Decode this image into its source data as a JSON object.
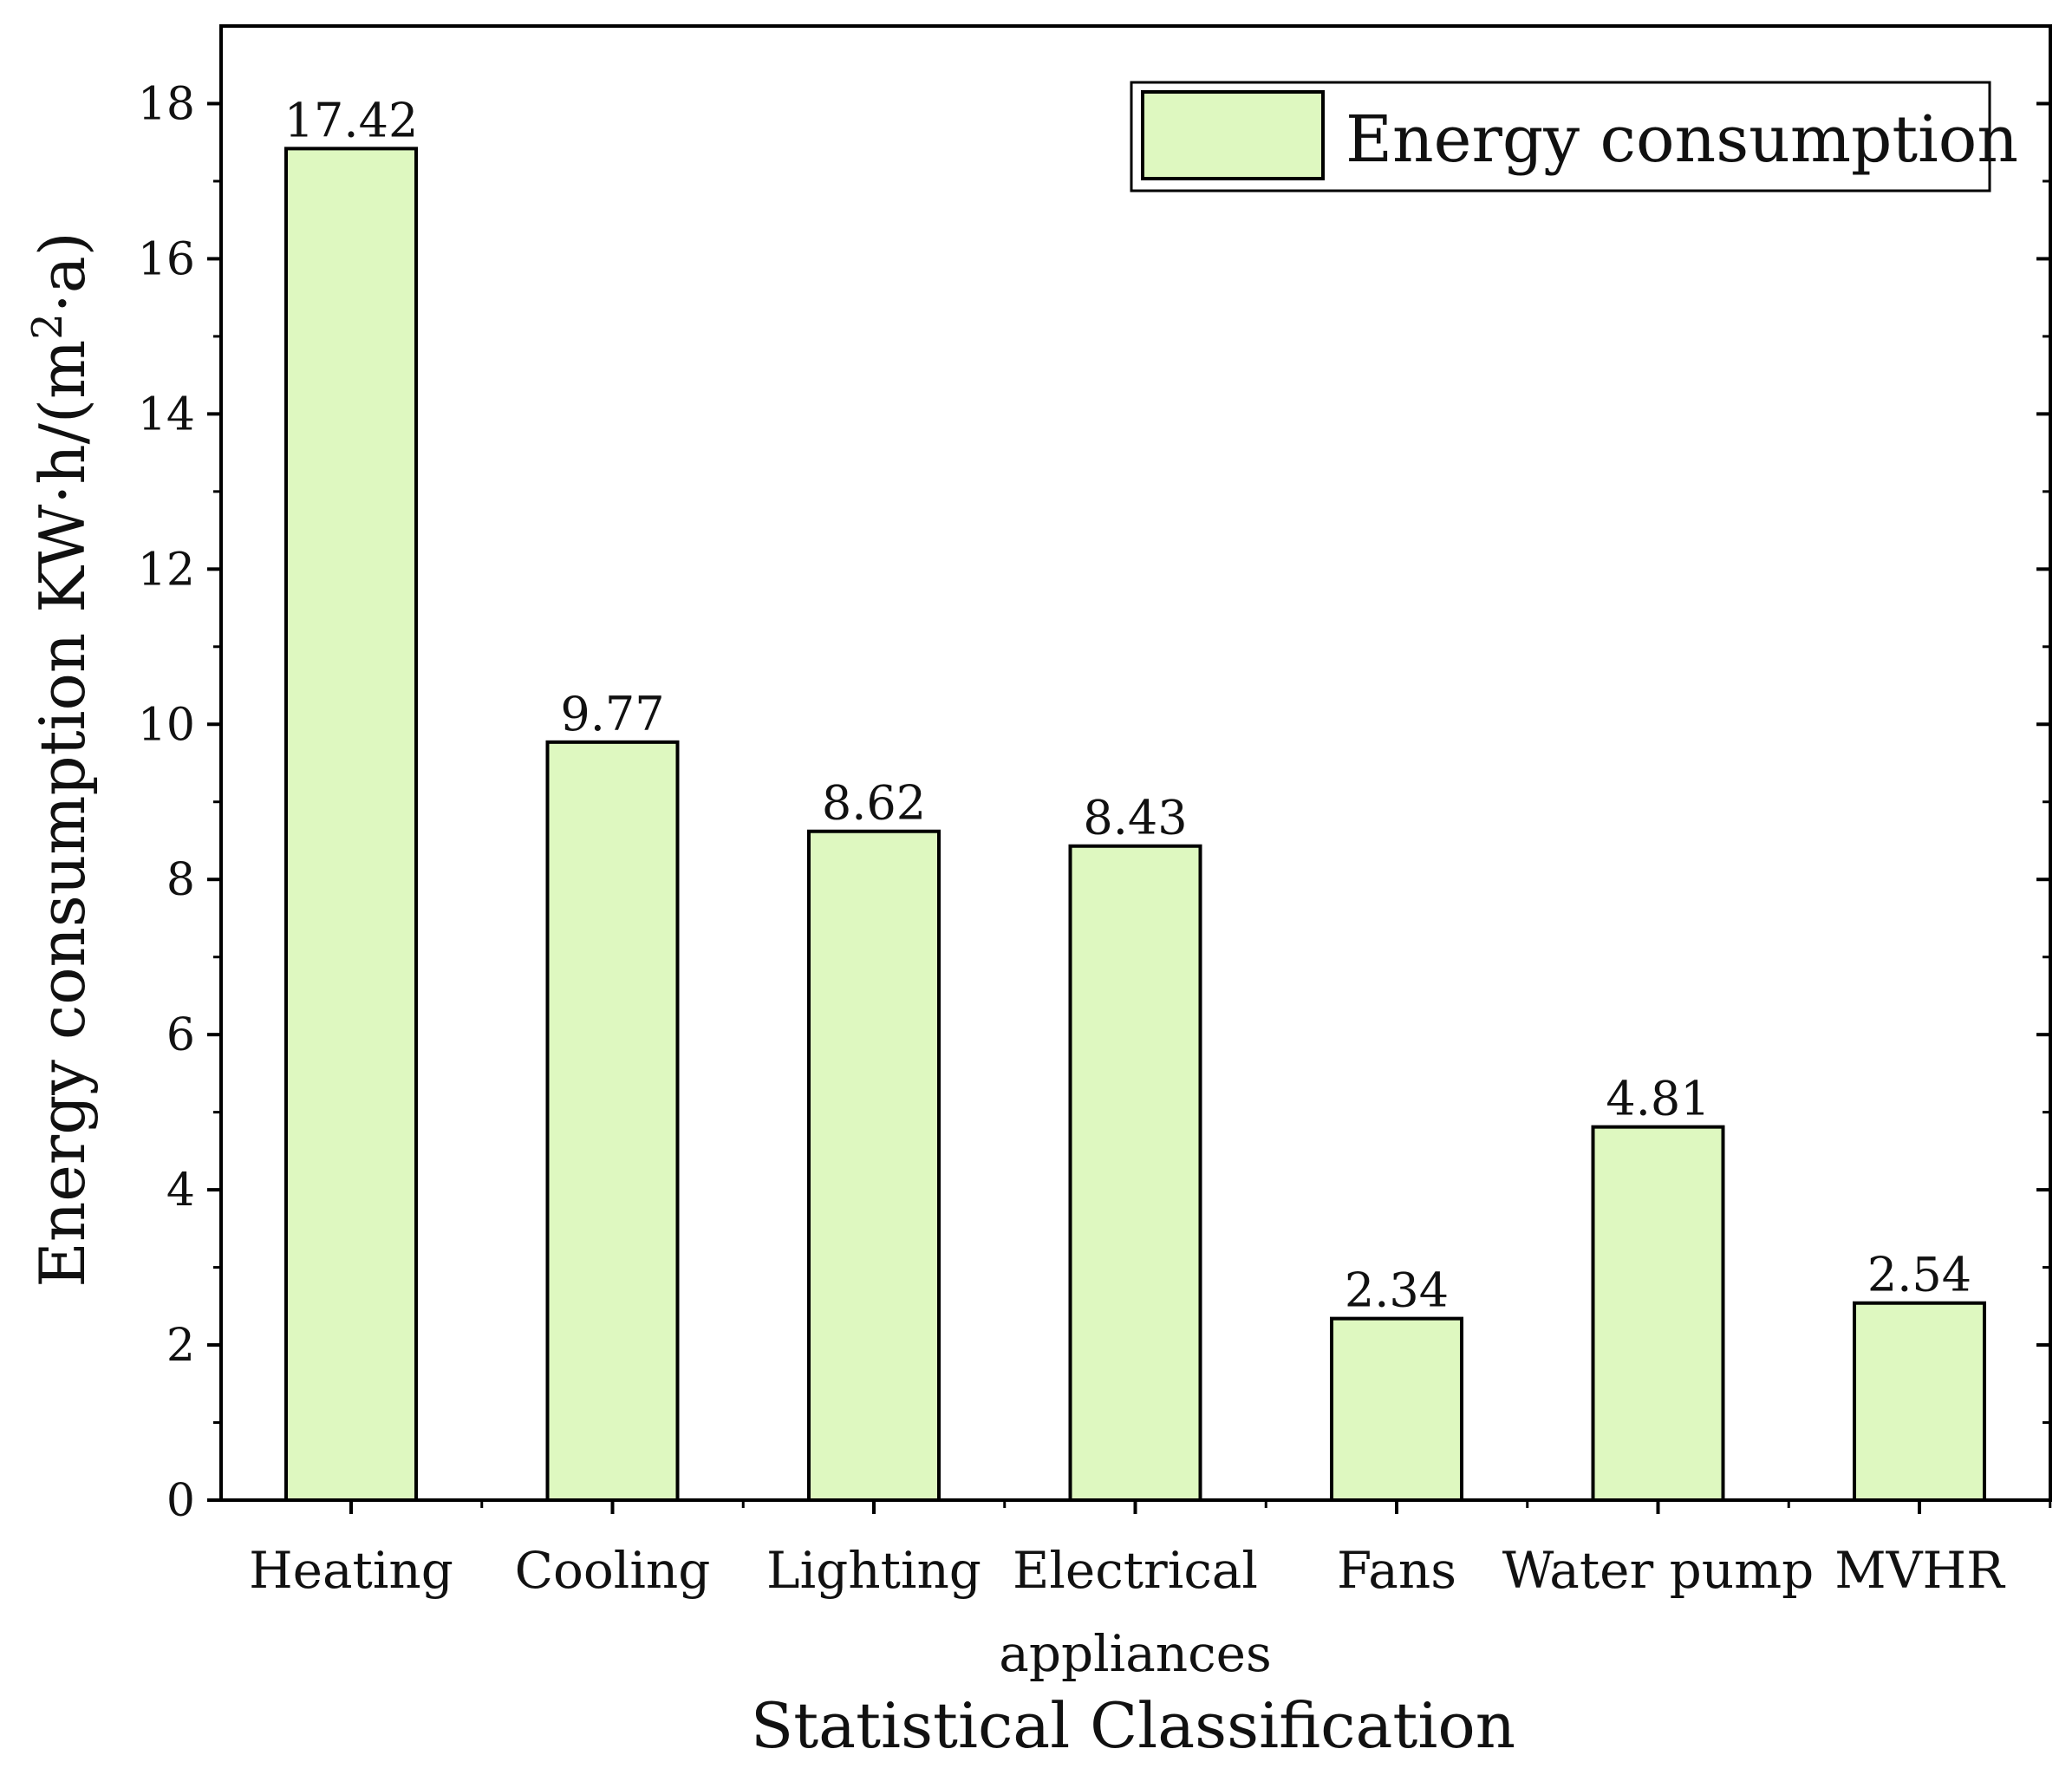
{
  "chart_data": {
    "type": "bar",
    "categories": [
      "Heating",
      "Cooling",
      "Lighting",
      "Electrical appliances",
      "Fans",
      "Water pump",
      "MVHR"
    ],
    "category_lines": [
      [
        "Heating"
      ],
      [
        "Cooling"
      ],
      [
        "Lighting"
      ],
      [
        "Electrical",
        "appliances"
      ],
      [
        "Fans"
      ],
      [
        "Water pump"
      ],
      [
        "MVHR"
      ]
    ],
    "series": [
      {
        "name": "Energy consumption",
        "values": [
          17.42,
          9.77,
          8.62,
          8.43,
          2.34,
          4.81,
          2.54
        ]
      }
    ],
    "value_labels": [
      "17.42",
      "9.77",
      "8.62",
      "8.43",
      "2.34",
      "4.81",
      "2.54"
    ],
    "xlabel": "Statistical Classification",
    "ylabel_main": "Energy consumption KW·h/(m",
    "ylabel_sup": "2",
    "ylabel_tail": "·a)",
    "ylim": [
      0,
      19
    ],
    "yticks": [
      0,
      2,
      4,
      6,
      8,
      10,
      12,
      14,
      16,
      18
    ],
    "grid": false,
    "legend_position": "top-right",
    "colors": {
      "bar_fill": "#def8c0",
      "bar_stroke": "#000000",
      "axis": "#000000"
    }
  }
}
